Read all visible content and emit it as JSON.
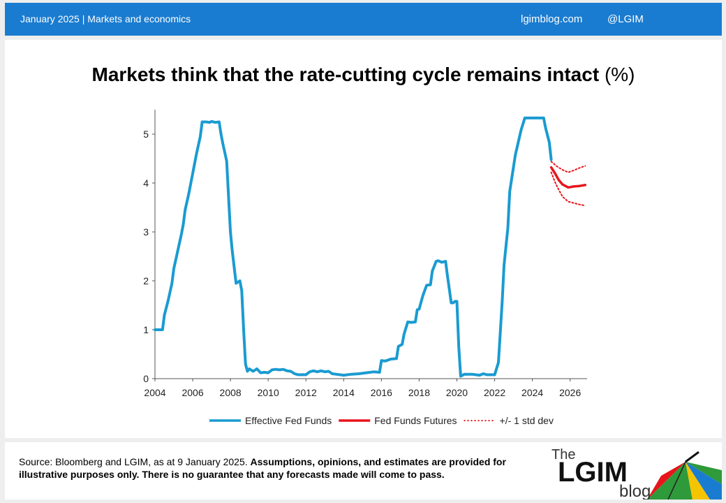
{
  "header": {
    "date_section": "January 2025 |  Markets and economics",
    "site": "lgimblog.com",
    "handle": "@LGIM"
  },
  "chart_title": {
    "main": "Markets think that the rate-cutting cycle remains intact",
    "unit": "(%)"
  },
  "chart_data": {
    "type": "line",
    "title": "Markets think that the rate-cutting cycle remains intact (%)",
    "x_ticks": [
      "2004",
      "2006",
      "2008",
      "2010",
      "2012",
      "2014",
      "2016",
      "2018",
      "2020",
      "2022",
      "2024",
      "2026"
    ],
    "y_ticks": [
      "0",
      "1",
      "2",
      "3",
      "4",
      "5"
    ],
    "xlim": [
      2004,
      2026.9
    ],
    "ylim": [
      0,
      5.5
    ],
    "grid": false,
    "legend_position": "bottom",
    "series": [
      {
        "name": "Effective Fed Funds",
        "color": "#1a9bd1",
        "style": "solid",
        "points": [
          [
            2004.0,
            1.0
          ],
          [
            2004.4,
            1.0
          ],
          [
            2004.5,
            1.3
          ],
          [
            2004.7,
            1.6
          ],
          [
            2004.9,
            1.95
          ],
          [
            2005.0,
            2.25
          ],
          [
            2005.2,
            2.6
          ],
          [
            2005.4,
            2.95
          ],
          [
            2005.5,
            3.15
          ],
          [
            2005.6,
            3.45
          ],
          [
            2005.8,
            3.8
          ],
          [
            2006.0,
            4.2
          ],
          [
            2006.2,
            4.6
          ],
          [
            2006.4,
            4.95
          ],
          [
            2006.5,
            5.25
          ],
          [
            2006.7,
            5.25
          ],
          [
            2006.9,
            5.24
          ],
          [
            2007.0,
            5.26
          ],
          [
            2007.2,
            5.24
          ],
          [
            2007.4,
            5.25
          ],
          [
            2007.5,
            5.0
          ],
          [
            2007.6,
            4.8
          ],
          [
            2007.8,
            4.45
          ],
          [
            2008.0,
            3.0
          ],
          [
            2008.1,
            2.6
          ],
          [
            2008.3,
            1.95
          ],
          [
            2008.5,
            2.0
          ],
          [
            2008.6,
            1.8
          ],
          [
            2008.7,
            1.0
          ],
          [
            2008.8,
            0.3
          ],
          [
            2008.9,
            0.15
          ],
          [
            2009.0,
            0.2
          ],
          [
            2009.2,
            0.15
          ],
          [
            2009.4,
            0.2
          ],
          [
            2009.6,
            0.12
          ],
          [
            2009.8,
            0.13
          ],
          [
            2010.0,
            0.12
          ],
          [
            2010.2,
            0.18
          ],
          [
            2010.4,
            0.19
          ],
          [
            2010.6,
            0.18
          ],
          [
            2010.8,
            0.19
          ],
          [
            2011.0,
            0.16
          ],
          [
            2011.2,
            0.15
          ],
          [
            2011.4,
            0.1
          ],
          [
            2011.6,
            0.08
          ],
          [
            2011.8,
            0.08
          ],
          [
            2012.0,
            0.08
          ],
          [
            2012.2,
            0.14
          ],
          [
            2012.4,
            0.16
          ],
          [
            2012.6,
            0.14
          ],
          [
            2012.8,
            0.16
          ],
          [
            2013.0,
            0.14
          ],
          [
            2013.2,
            0.15
          ],
          [
            2013.4,
            0.1
          ],
          [
            2013.6,
            0.09
          ],
          [
            2013.8,
            0.08
          ],
          [
            2014.0,
            0.07
          ],
          [
            2014.4,
            0.09
          ],
          [
            2014.8,
            0.1
          ],
          [
            2015.2,
            0.12
          ],
          [
            2015.6,
            0.14
          ],
          [
            2015.9,
            0.13
          ],
          [
            2016.0,
            0.37
          ],
          [
            2016.2,
            0.36
          ],
          [
            2016.5,
            0.4
          ],
          [
            2016.8,
            0.41
          ],
          [
            2016.9,
            0.66
          ],
          [
            2017.1,
            0.7
          ],
          [
            2017.2,
            0.91
          ],
          [
            2017.4,
            1.16
          ],
          [
            2017.6,
            1.15
          ],
          [
            2017.8,
            1.16
          ],
          [
            2017.9,
            1.41
          ],
          [
            2018.0,
            1.42
          ],
          [
            2018.2,
            1.7
          ],
          [
            2018.4,
            1.91
          ],
          [
            2018.6,
            1.92
          ],
          [
            2018.7,
            2.2
          ],
          [
            2018.9,
            2.4
          ],
          [
            2019.0,
            2.41
          ],
          [
            2019.2,
            2.38
          ],
          [
            2019.4,
            2.4
          ],
          [
            2019.5,
            2.1
          ],
          [
            2019.7,
            1.55
          ],
          [
            2019.8,
            1.55
          ],
          [
            2019.9,
            1.58
          ],
          [
            2020.0,
            1.58
          ],
          [
            2020.1,
            0.65
          ],
          [
            2020.2,
            0.05
          ],
          [
            2020.4,
            0.09
          ],
          [
            2020.8,
            0.09
          ],
          [
            2021.2,
            0.07
          ],
          [
            2021.4,
            0.1
          ],
          [
            2021.6,
            0.08
          ],
          [
            2022.0,
            0.08
          ],
          [
            2022.2,
            0.33
          ],
          [
            2022.4,
            1.58
          ],
          [
            2022.5,
            2.33
          ],
          [
            2022.7,
            3.08
          ],
          [
            2022.8,
            3.83
          ],
          [
            2023.0,
            4.33
          ],
          [
            2023.1,
            4.58
          ],
          [
            2023.4,
            5.08
          ],
          [
            2023.6,
            5.33
          ],
          [
            2024.0,
            5.33
          ],
          [
            2024.3,
            5.33
          ],
          [
            2024.6,
            5.33
          ],
          [
            2024.7,
            5.13
          ],
          [
            2024.9,
            4.83
          ],
          [
            2025.0,
            4.48
          ]
        ]
      },
      {
        "name": "Fed Funds Futures",
        "color": "#e8141b",
        "style": "solid",
        "points": [
          [
            2025.0,
            4.32
          ],
          [
            2025.2,
            4.2
          ],
          [
            2025.4,
            4.06
          ],
          [
            2025.6,
            3.97
          ],
          [
            2025.9,
            3.91
          ],
          [
            2026.2,
            3.93
          ],
          [
            2026.5,
            3.94
          ],
          [
            2026.8,
            3.96
          ]
        ]
      },
      {
        "name": "+/- 1 std dev",
        "color": "#e8141b",
        "style": "dotted",
        "points": [
          [
            2025.0,
            4.44
          ],
          [
            2025.3,
            4.34
          ],
          [
            2025.6,
            4.27
          ],
          [
            2025.9,
            4.22
          ],
          [
            2026.2,
            4.26
          ],
          [
            2026.5,
            4.31
          ],
          [
            2026.8,
            4.35
          ]
        ]
      },
      {
        "name": "+/- 1 std dev (lower)",
        "color": "#e8141b",
        "style": "dotted",
        "legend": false,
        "points": [
          [
            2025.0,
            4.22
          ],
          [
            2025.2,
            4.02
          ],
          [
            2025.4,
            3.86
          ],
          [
            2025.6,
            3.72
          ],
          [
            2025.9,
            3.62
          ],
          [
            2026.2,
            3.59
          ],
          [
            2026.5,
            3.56
          ],
          [
            2026.8,
            3.54
          ]
        ]
      }
    ]
  },
  "footer": {
    "source_plain": "Source: Bloomberg and LGIM,  as at 9 January 2025. ",
    "source_bold": "Assumptions,  opinions, and estimates are provided for illustrative purposes only. There is no guarantee that any forecasts made will come to pass."
  },
  "logo": {
    "the": "The",
    "brand": "LGIM",
    "blog": "blog"
  },
  "colors": {
    "header_bg": "#1a7cd0",
    "effective": "#1a9bd1",
    "futures": "#e8141b"
  }
}
